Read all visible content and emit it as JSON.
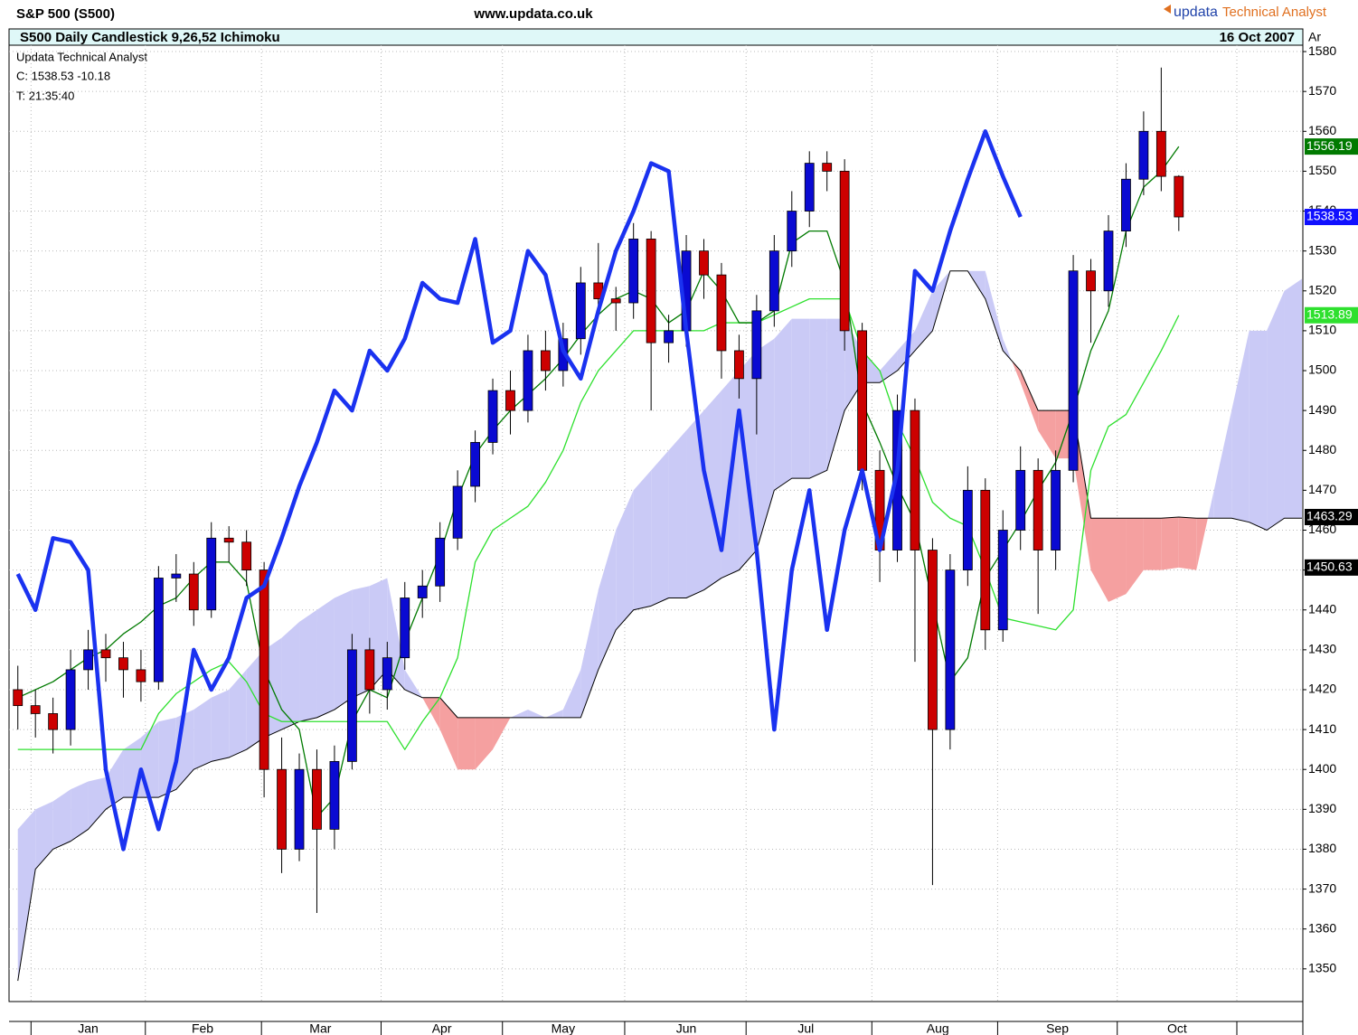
{
  "header": {
    "symbol": "S&P 500 (S500)",
    "site": "www.updata.co.uk",
    "brand_name": "updata",
    "brand_tag": "Technical Analyst"
  },
  "chart_data": {
    "type": "candlestick",
    "title": "S500 Daily Candlestick  9,26,52 Ichimoku",
    "date": "16 Oct 2007",
    "corner": "Ar",
    "info": [
      "Updata Technical Analyst",
      "C: 1538.53  -10.18",
      "T: 21:35:40"
    ],
    "open": [
      1420,
      1416,
      1414,
      1410,
      1425,
      1430,
      1428,
      1425,
      1422,
      1448,
      1449,
      1440,
      1458,
      1457,
      1450,
      1400,
      1380,
      1400,
      1385,
      1402,
      1430,
      1420,
      1428,
      1443,
      1446,
      1458,
      1471,
      1482,
      1495,
      1490,
      1505,
      1500,
      1508,
      1522,
      1518,
      1517,
      1533,
      1507,
      1510,
      1530,
      1524,
      1505,
      1498,
      1515,
      1530,
      1540,
      1552,
      1550,
      1510,
      1475,
      1455,
      1490,
      1455,
      1410,
      1450,
      1470,
      1435,
      1460,
      1475,
      1455,
      1475,
      1525,
      1520,
      1535,
      1548,
      1560,
      1548.71
    ],
    "high": [
      1426,
      1420,
      1418,
      1430,
      1435,
      1434,
      1432,
      1430,
      1451,
      1454,
      1452,
      1462,
      1461,
      1460,
      1452,
      1408,
      1404,
      1405,
      1406,
      1434,
      1433,
      1432,
      1447,
      1450,
      1462,
      1475,
      1485,
      1498,
      1500,
      1509,
      1510,
      1512,
      1526,
      1532,
      1521,
      1537,
      1535,
      1514,
      1534,
      1533,
      1527,
      1509,
      1519,
      1534,
      1545,
      1555,
      1555,
      1553,
      1512,
      1480,
      1494,
      1493,
      1458,
      1454,
      1476,
      1473,
      1465,
      1481,
      1478,
      1480,
      1529,
      1528,
      1539,
      1552,
      1565,
      1576,
      1549
    ],
    "low": [
      1410,
      1408,
      1404,
      1406,
      1420,
      1422,
      1418,
      1417,
      1420,
      1442,
      1436,
      1438,
      1452,
      1446,
      1393,
      1374,
      1377,
      1364,
      1380,
      1400,
      1414,
      1415,
      1425,
      1438,
      1442,
      1455,
      1467,
      1479,
      1484,
      1487,
      1495,
      1496,
      1504,
      1514,
      1510,
      1513,
      1490,
      1502,
      1506,
      1518,
      1498,
      1493,
      1484,
      1511,
      1526,
      1536,
      1545,
      1505,
      1470,
      1447,
      1452,
      1427,
      1371,
      1405,
      1446,
      1430,
      1432,
      1455,
      1439,
      1450,
      1472,
      1507,
      1516,
      1531,
      1544,
      1545,
      1535
    ],
    "close": [
      1416,
      1414,
      1410,
      1425,
      1430,
      1428,
      1425,
      1422,
      1448,
      1449,
      1440,
      1458,
      1457,
      1450,
      1400,
      1380,
      1400,
      1385,
      1402,
      1430,
      1420,
      1428,
      1443,
      1446,
      1458,
      1471,
      1482,
      1495,
      1490,
      1505,
      1500,
      1508,
      1522,
      1518,
      1517,
      1533,
      1507,
      1510,
      1530,
      1524,
      1505,
      1498,
      1515,
      1530,
      1540,
      1552,
      1550,
      1510,
      1475,
      1455,
      1490,
      1455,
      1410,
      1450,
      1470,
      1435,
      1460,
      1475,
      1455,
      1475,
      1525,
      1520,
      1535,
      1548,
      1560,
      1548.71,
      1538.53
    ],
    "up_color": "#0a0ad2",
    "down_color": "#cc0000",
    "indicators": {
      "tenkan": {
        "color": "#007a00",
        "values": [
          1418,
          1420,
          1422,
          1425,
          1428,
          1430,
          1434,
          1437,
          1441,
          1443,
          1448,
          1452,
          1452,
          1447,
          1425,
          1415,
          1410,
          1388,
          1393,
          1412,
          1420,
          1418,
          1432,
          1443,
          1454,
          1468,
          1479,
          1485,
          1490,
          1494,
          1498,
          1503,
          1509,
          1514,
          1518,
          1520,
          1518,
          1512,
          1515,
          1525,
          1520,
          1512,
          1512,
          1515,
          1532,
          1535,
          1535,
          1522,
          1492,
          1482,
          1471,
          1462,
          1442,
          1422,
          1428,
          1448,
          1455,
          1462,
          1470,
          1477,
          1490,
          1505,
          1515,
          1535,
          1546,
          1550,
          1556.19
        ]
      },
      "kijun": {
        "color": "#2ee02e",
        "values": [
          1405,
          1405,
          1405,
          1405,
          1405,
          1405,
          1405,
          1405,
          1414,
          1419,
          1422,
          1425,
          1427,
          1422,
          1414,
          1412,
          1412,
          1412,
          1412,
          1412,
          1412,
          1412,
          1405,
          1412,
          1418,
          1428,
          1452,
          1460,
          1463,
          1466,
          1472,
          1480,
          1492,
          1500,
          1505,
          1510,
          1510,
          1510,
          1510,
          1510,
          1512,
          1512,
          1512,
          1514,
          1516,
          1518,
          1518,
          1518,
          1505,
          1500,
          1487,
          1478,
          1467,
          1463,
          1461,
          1450,
          1438,
          1437,
          1436,
          1435,
          1440,
          1475,
          1486,
          1489,
          1497,
          1505,
          1513.89
        ]
      },
      "chikou": {
        "color": "#1a32f0",
        "values": [
          1449,
          1440,
          1458,
          1457,
          1450,
          1400,
          1380,
          1400,
          1385,
          1402,
          1430,
          1420,
          1428,
          1443,
          1446,
          1458,
          1471,
          1482,
          1495,
          1490,
          1505,
          1500,
          1508,
          1522,
          1518,
          1517,
          1533,
          1507,
          1510,
          1530,
          1524,
          1505,
          1498,
          1515,
          1530,
          1540,
          1552,
          1550,
          1510,
          1475,
          1455,
          1490,
          1455,
          1410,
          1450,
          1470,
          1435,
          1460,
          1475,
          1455,
          1475,
          1525,
          1520,
          1535,
          1548,
          1560,
          1548.71,
          1538.53
        ]
      },
      "span_a": {
        "values": [
          1385,
          1390,
          1392,
          1395,
          1397,
          1398,
          1405,
          1408,
          1412,
          1413,
          1415,
          1418,
          1420,
          1425,
          1430,
          1433,
          1437,
          1440,
          1443,
          1445,
          1446,
          1448,
          1425,
          1418,
          1410,
          1400,
          1400,
          1405,
          1413,
          1415,
          1413,
          1415,
          1425,
          1445,
          1460,
          1470,
          1475,
          1480,
          1485,
          1490,
          1495,
          1500,
          1505,
          1508,
          1513,
          1513,
          1513,
          1513,
          1505,
          1500,
          1505,
          1510,
          1520,
          1525,
          1525,
          1525,
          1508,
          1497,
          1485,
          1478,
          1478,
          1450,
          1442,
          1444,
          1450,
          1450,
          1450.63,
          1450,
          1470,
          1490,
          1510,
          1510,
          1520,
          1523
        ]
      },
      "span_b": {
        "color": "#000000",
        "values": [
          1347,
          1375,
          1380,
          1382,
          1385,
          1390,
          1393,
          1393,
          1393,
          1395,
          1400,
          1402,
          1403,
          1405,
          1408,
          1410,
          1412,
          1413,
          1415,
          1418,
          1420,
          1425,
          1420,
          1418,
          1418,
          1413,
          1413,
          1413,
          1413,
          1413,
          1413,
          1413,
          1413,
          1425,
          1435,
          1440,
          1441,
          1443,
          1443,
          1445,
          1448,
          1450,
          1455,
          1470,
          1473,
          1473,
          1475,
          1490,
          1497,
          1497,
          1500,
          1505,
          1510,
          1525,
          1525,
          1518,
          1505,
          1500,
          1490,
          1490,
          1490,
          1463,
          1463,
          1463,
          1463,
          1463,
          1463.29,
          1463,
          1463,
          1463,
          1462,
          1460,
          1463,
          1463
        ]
      }
    },
    "cloud_up_color": "#cacaf6",
    "cloud_down_color": "#f5a0a0",
    "xlim": [
      -0.5,
      73
    ],
    "xticks": [
      {
        "value": 4,
        "label": "Jan"
      },
      {
        "value": 10.5,
        "label": "Feb"
      },
      {
        "value": 17.2,
        "label": "Mar"
      },
      {
        "value": 24.1,
        "label": "Apr"
      },
      {
        "value": 31,
        "label": "May"
      },
      {
        "value": 38,
        "label": "Jun"
      },
      {
        "value": 44.8,
        "label": "Jul"
      },
      {
        "value": 52.3,
        "label": "Aug"
      },
      {
        "value": 59.1,
        "label": "Sep"
      },
      {
        "value": 65.9,
        "label": "Oct"
      }
    ],
    "ylim": [
      1341.8,
      1581.6
    ],
    "yticks": [
      1350,
      1360,
      1370,
      1380,
      1390,
      1400,
      1410,
      1420,
      1430,
      1440,
      1450,
      1460,
      1470,
      1480,
      1490,
      1500,
      1510,
      1520,
      1530,
      1540,
      1550,
      1560,
      1570,
      1580
    ],
    "grid": true
  }
}
